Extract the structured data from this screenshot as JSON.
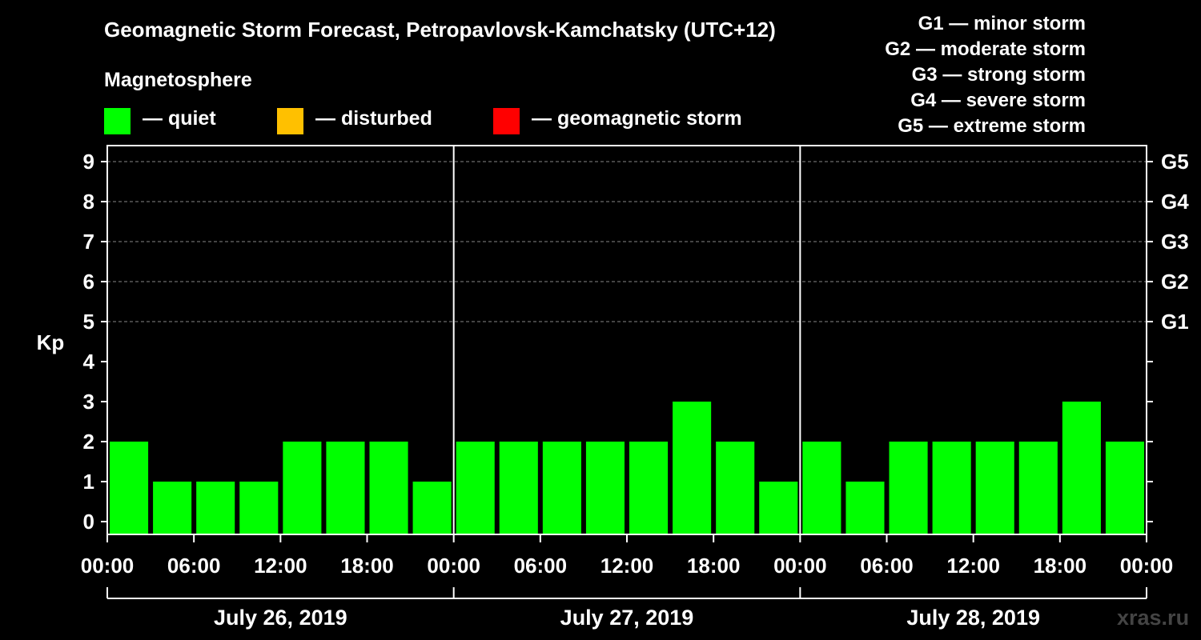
{
  "title": "Geomagnetic Storm Forecast, Petropavlovsk-Kamchatsky (UTC+12)",
  "legend": {
    "heading": "Magnetosphere",
    "items": [
      {
        "label": "— quiet",
        "color": "#00ff00"
      },
      {
        "label": "— disturbed",
        "color": "#ffc000"
      },
      {
        "label": "— geomagnetic storm",
        "color": "#ff0000"
      }
    ]
  },
  "g_scale_legend": [
    "G1 — minor storm",
    "G2 — moderate storm",
    "G3 — strong storm",
    "G4 — severe storm",
    "G5 — extreme storm"
  ],
  "site": "xras.ru",
  "chart_data": {
    "type": "bar",
    "ylabel": "Kp",
    "ylim": [
      0,
      9
    ],
    "y_ticks": [
      0,
      1,
      2,
      3,
      4,
      5,
      6,
      7,
      8,
      9
    ],
    "right_ticks": [
      {
        "value": 5,
        "label": "G1"
      },
      {
        "value": 6,
        "label": "G2"
      },
      {
        "value": 7,
        "label": "G3"
      },
      {
        "value": 8,
        "label": "G4"
      },
      {
        "value": 9,
        "label": "G5"
      }
    ],
    "x_tick_labels": [
      "00:00",
      "06:00",
      "12:00",
      "18:00",
      "00:00",
      "06:00",
      "12:00",
      "18:00",
      "00:00",
      "06:00",
      "12:00",
      "18:00",
      "00:00"
    ],
    "days": [
      "July 26, 2019",
      "July 27, 2019",
      "July 28, 2019"
    ],
    "interval_hours": 3,
    "values": [
      2,
      1,
      1,
      1,
      2,
      2,
      2,
      1,
      2,
      2,
      2,
      2,
      2,
      3,
      2,
      1,
      2,
      1,
      2,
      2,
      2,
      2,
      3,
      2
    ],
    "bar_color": "#00ff00",
    "grid": true
  }
}
